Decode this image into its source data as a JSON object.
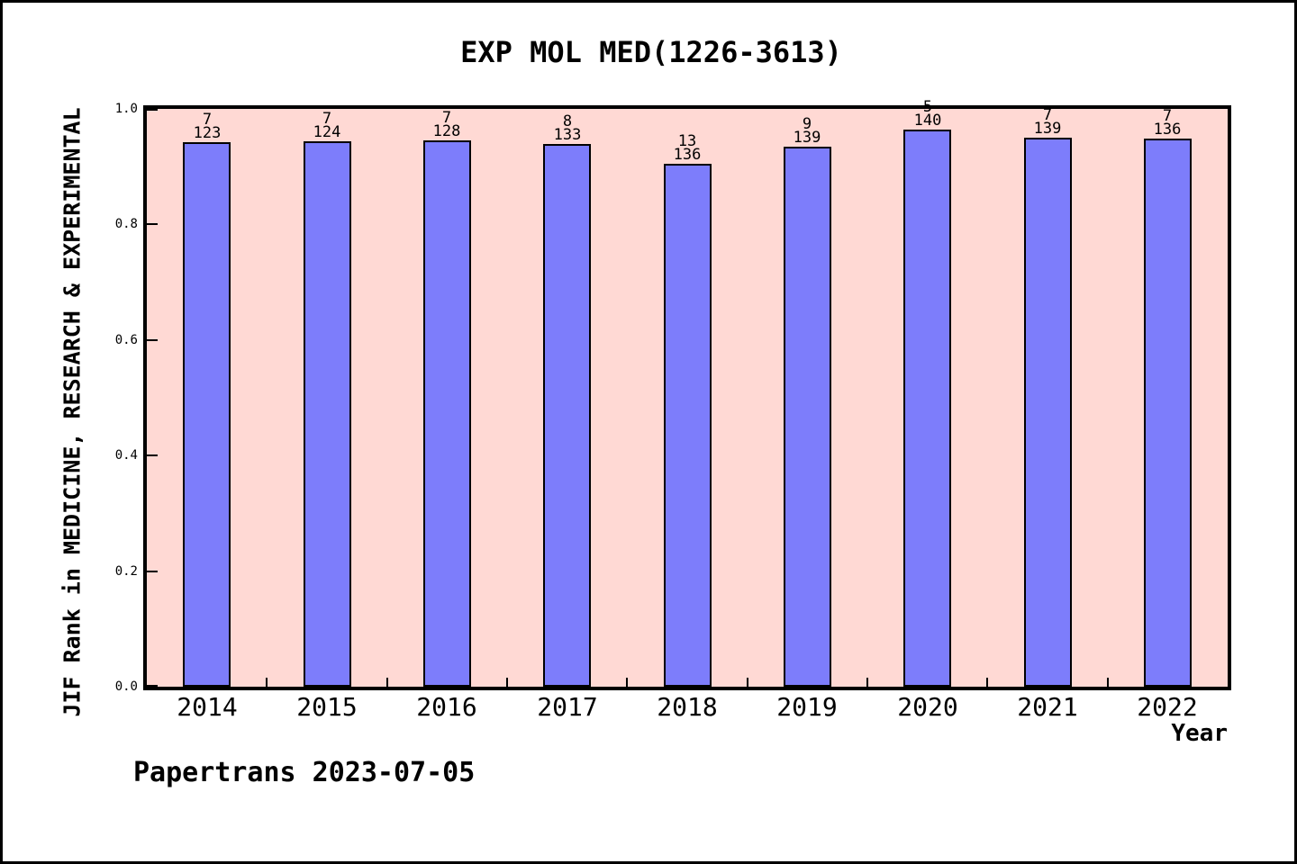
{
  "title": "EXP MOL MED(1226-3613)",
  "watermark": "Papertrans 2023-07-05",
  "chart_data": {
    "type": "bar",
    "title": "EXP MOL MED(1226-3613)",
    "xlabel": "Year",
    "ylabel": "JIF Rank in MEDICINE, RESEARCH & EXPERIMENTAL",
    "ylim": [
      0.0,
      1.0
    ],
    "ytick_labels": [
      "0.0",
      "0.2",
      "0.4",
      "0.6",
      "0.8",
      "1.0"
    ],
    "ytick_values": [
      0.0,
      0.2,
      0.4,
      0.6,
      0.8,
      1.0
    ],
    "grid": "off",
    "legend": "none",
    "categories": [
      "2014",
      "2015",
      "2016",
      "2017",
      "2018",
      "2019",
      "2020",
      "2021",
      "2022"
    ],
    "bars": [
      {
        "year": "2014",
        "rank": 7,
        "total": 123,
        "value": 0.9431
      },
      {
        "year": "2015",
        "rank": 7,
        "total": 124,
        "value": 0.9435
      },
      {
        "year": "2016",
        "rank": 7,
        "total": 128,
        "value": 0.9453
      },
      {
        "year": "2017",
        "rank": 8,
        "total": 133,
        "value": 0.9398
      },
      {
        "year": "2018",
        "rank": 13,
        "total": 136,
        "value": 0.9044
      },
      {
        "year": "2019",
        "rank": 9,
        "total": 139,
        "value": 0.9353
      },
      {
        "year": "2020",
        "rank": 5,
        "total": 140,
        "value": 0.9643
      },
      {
        "year": "2021",
        "rank": 7,
        "total": 139,
        "value": 0.9496
      },
      {
        "year": "2022",
        "rank": 7,
        "total": 136,
        "value": 0.9485
      }
    ],
    "colors": {
      "bar_fill": "#7d7dfb",
      "bar_edge": "#000000",
      "plot_background": "#ffd9d4",
      "page_background": "#ffffff",
      "frame": "#000000",
      "text": "#000000"
    }
  }
}
